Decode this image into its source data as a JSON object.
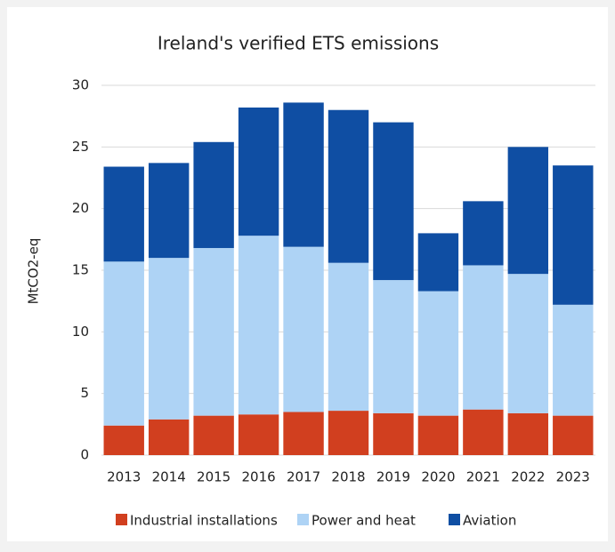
{
  "chart_data": {
    "type": "stacked_bar",
    "title": "Ireland's verified ETS emissions",
    "y_label": "MtCO2-eq",
    "categories": [
      "2013",
      "2014",
      "2015",
      "2016",
      "2017",
      "2018",
      "2019",
      "2020",
      "2021",
      "2022",
      "2023"
    ],
    "series": [
      {
        "name": "Industrial installations",
        "color": "#d13f1f",
        "values": [
          2.4,
          2.9,
          3.2,
          3.3,
          3.5,
          3.6,
          3.4,
          3.2,
          3.7,
          3.4,
          3.2
        ]
      },
      {
        "name": "Power and heat",
        "color": "#aed3f5",
        "values": [
          13.3,
          13.1,
          13.6,
          14.5,
          13.4,
          12.0,
          10.8,
          10.1,
          11.7,
          11.3,
          9.0
        ]
      },
      {
        "name": "Aviation",
        "color": "#0f4ea3",
        "values": [
          7.7,
          7.7,
          8.6,
          10.4,
          11.7,
          12.4,
          12.8,
          4.7,
          5.2,
          10.3,
          11.3
        ]
      }
    ],
    "ylim": [
      0,
      30
    ],
    "yticks": [
      0,
      5,
      10,
      15,
      20,
      25,
      30
    ],
    "grid": true,
    "legend": "bottom"
  }
}
